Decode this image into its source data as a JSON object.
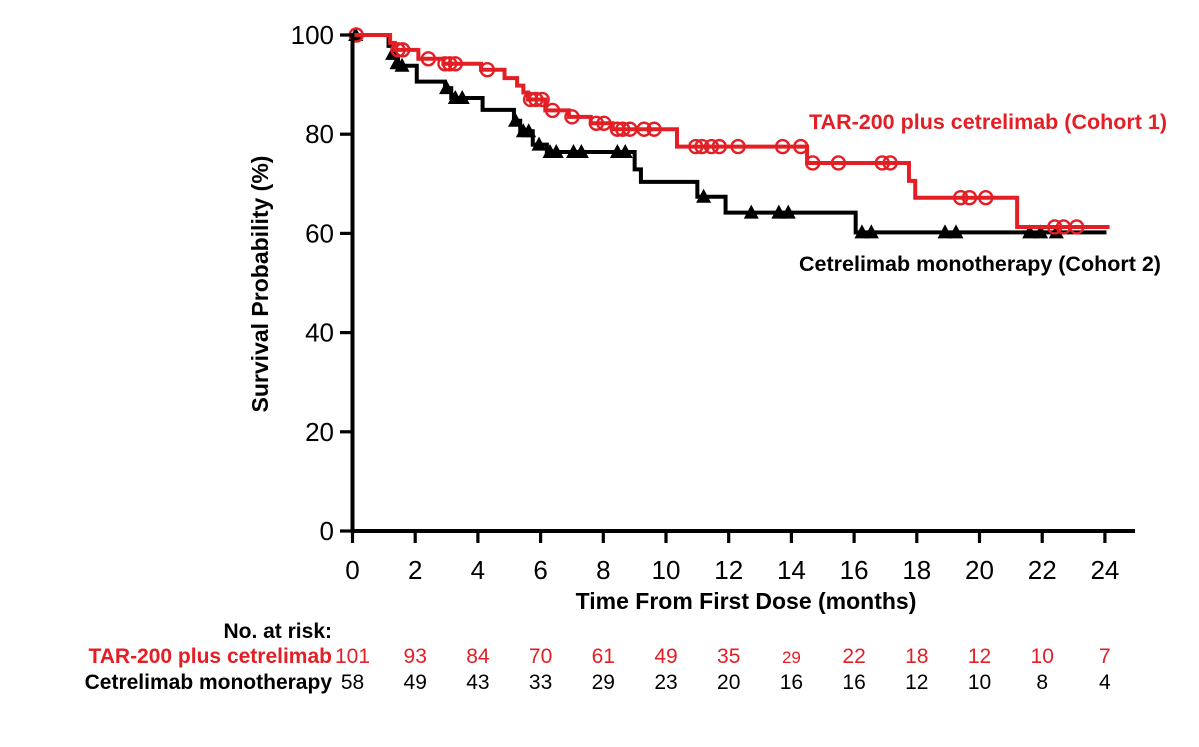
{
  "chart_data": {
    "type": "line",
    "subtype": "kaplan-meier-step-curve",
    "title": "",
    "xlabel": "Time From First Dose (months)",
    "ylabel": "Survival Probability (%)",
    "xlim": [
      0,
      24.8
    ],
    "ylim": [
      0,
      100
    ],
    "xticks": [
      0,
      2,
      4,
      6,
      8,
      10,
      12,
      14,
      16,
      18,
      20,
      22,
      24
    ],
    "yticks": [
      0,
      20,
      40,
      60,
      80,
      100
    ],
    "grid": false,
    "legend_position": "inline-labels-on-plot",
    "series": [
      {
        "name": "TAR-200 plus cetrelimab (Cohort 1)",
        "color": "#e31e24",
        "marker": "open-circle",
        "steps": [
          [
            0,
            100
          ],
          [
            1.2,
            98.4
          ],
          [
            1.35,
            97
          ],
          [
            2.1,
            95.2
          ],
          [
            2.9,
            94.2
          ],
          [
            4.1,
            93
          ],
          [
            4.85,
            91.3
          ],
          [
            5.25,
            89.8
          ],
          [
            5.45,
            88.4
          ],
          [
            5.6,
            87
          ],
          [
            6.15,
            84.8
          ],
          [
            6.9,
            83.5
          ],
          [
            7.6,
            82.2
          ],
          [
            8.3,
            81
          ],
          [
            10.35,
            77.5
          ],
          [
            14.5,
            74.2
          ],
          [
            17.75,
            70.6
          ],
          [
            17.95,
            67.2
          ],
          [
            21.2,
            61.3
          ]
        ],
        "end_x": 24.15,
        "censors": [
          [
            0.12,
            100
          ],
          [
            1.45,
            97
          ],
          [
            1.6,
            97
          ],
          [
            2.42,
            95.2
          ],
          [
            2.95,
            94.2
          ],
          [
            3.1,
            94.2
          ],
          [
            3.28,
            94.2
          ],
          [
            4.3,
            93
          ],
          [
            5.68,
            87
          ],
          [
            5.85,
            87
          ],
          [
            6.05,
            87
          ],
          [
            6.38,
            84.8
          ],
          [
            7.0,
            83.5
          ],
          [
            7.78,
            82.2
          ],
          [
            8.02,
            82.2
          ],
          [
            8.45,
            81
          ],
          [
            8.62,
            81
          ],
          [
            8.85,
            81
          ],
          [
            9.3,
            81
          ],
          [
            9.62,
            81
          ],
          [
            10.95,
            77.5
          ],
          [
            11.15,
            77.5
          ],
          [
            11.45,
            77.5
          ],
          [
            11.7,
            77.5
          ],
          [
            12.3,
            77.5
          ],
          [
            13.72,
            77.5
          ],
          [
            14.3,
            77.5
          ],
          [
            14.68,
            74.2
          ],
          [
            15.5,
            74.2
          ],
          [
            16.9,
            74.2
          ],
          [
            17.15,
            74.2
          ],
          [
            19.4,
            67.2
          ],
          [
            19.68,
            67.2
          ],
          [
            20.2,
            67.2
          ],
          [
            22.4,
            61.3
          ],
          [
            22.68,
            61.3
          ],
          [
            23.1,
            61.3
          ]
        ]
      },
      {
        "name": "Cetrelimab monotherapy (Cohort 2)",
        "color": "#000000",
        "marker": "filled-triangle",
        "steps": [
          [
            0,
            100
          ],
          [
            1.15,
            97.8
          ],
          [
            1.3,
            95.8
          ],
          [
            1.45,
            93.8
          ],
          [
            2.05,
            90.6
          ],
          [
            2.95,
            89.3
          ],
          [
            3.15,
            87.3
          ],
          [
            4.15,
            84.9
          ],
          [
            5.15,
            82.7
          ],
          [
            5.35,
            80.6
          ],
          [
            5.75,
            77.9
          ],
          [
            6.2,
            76.4
          ],
          [
            9.0,
            72.9
          ],
          [
            9.2,
            70.4
          ],
          [
            11.0,
            67.4
          ],
          [
            11.9,
            64.2
          ],
          [
            16.05,
            60.2
          ]
        ],
        "end_x": 24.05,
        "censors": [
          [
            0.1,
            100
          ],
          [
            1.28,
            96.2
          ],
          [
            1.42,
            94.3
          ],
          [
            1.58,
            93.8
          ],
          [
            3.0,
            89.3
          ],
          [
            3.28,
            87.3
          ],
          [
            3.5,
            87.3
          ],
          [
            5.2,
            82.7
          ],
          [
            5.45,
            80.6
          ],
          [
            5.62,
            80.6
          ],
          [
            5.95,
            77.9
          ],
          [
            6.3,
            76.4
          ],
          [
            6.5,
            76.4
          ],
          [
            7.05,
            76.4
          ],
          [
            7.3,
            76.4
          ],
          [
            8.45,
            76.4
          ],
          [
            8.7,
            76.4
          ],
          [
            11.2,
            67.4
          ],
          [
            12.72,
            64.2
          ],
          [
            13.6,
            64.2
          ],
          [
            13.9,
            64.2
          ],
          [
            16.25,
            60.2
          ],
          [
            16.55,
            60.2
          ],
          [
            18.9,
            60.2
          ],
          [
            19.25,
            60.2
          ],
          [
            21.6,
            60.2
          ],
          [
            21.95,
            60.2
          ],
          [
            22.45,
            60.2
          ]
        ]
      }
    ],
    "at_risk": {
      "heading": "No. at risk:",
      "times": [
        0,
        2,
        4,
        6,
        8,
        10,
        12,
        14,
        16,
        18,
        20,
        22,
        24
      ],
      "rows": [
        {
          "label": "TAR-200 plus cetrelimab",
          "color": "#e31e24",
          "values": [
            "101",
            "93",
            "84",
            "70",
            "61",
            "49",
            "35",
            "29",
            "22",
            "18",
            "12",
            "10",
            "7"
          ],
          "small_indices": [
            7
          ]
        },
        {
          "label": "Cetrelimab monotherapy",
          "color": "#000000",
          "values": [
            "58",
            "49",
            "43",
            "33",
            "29",
            "23",
            "20",
            "16",
            "16",
            "12",
            "10",
            "8",
            "4"
          ],
          "small_indices": []
        }
      ]
    }
  }
}
